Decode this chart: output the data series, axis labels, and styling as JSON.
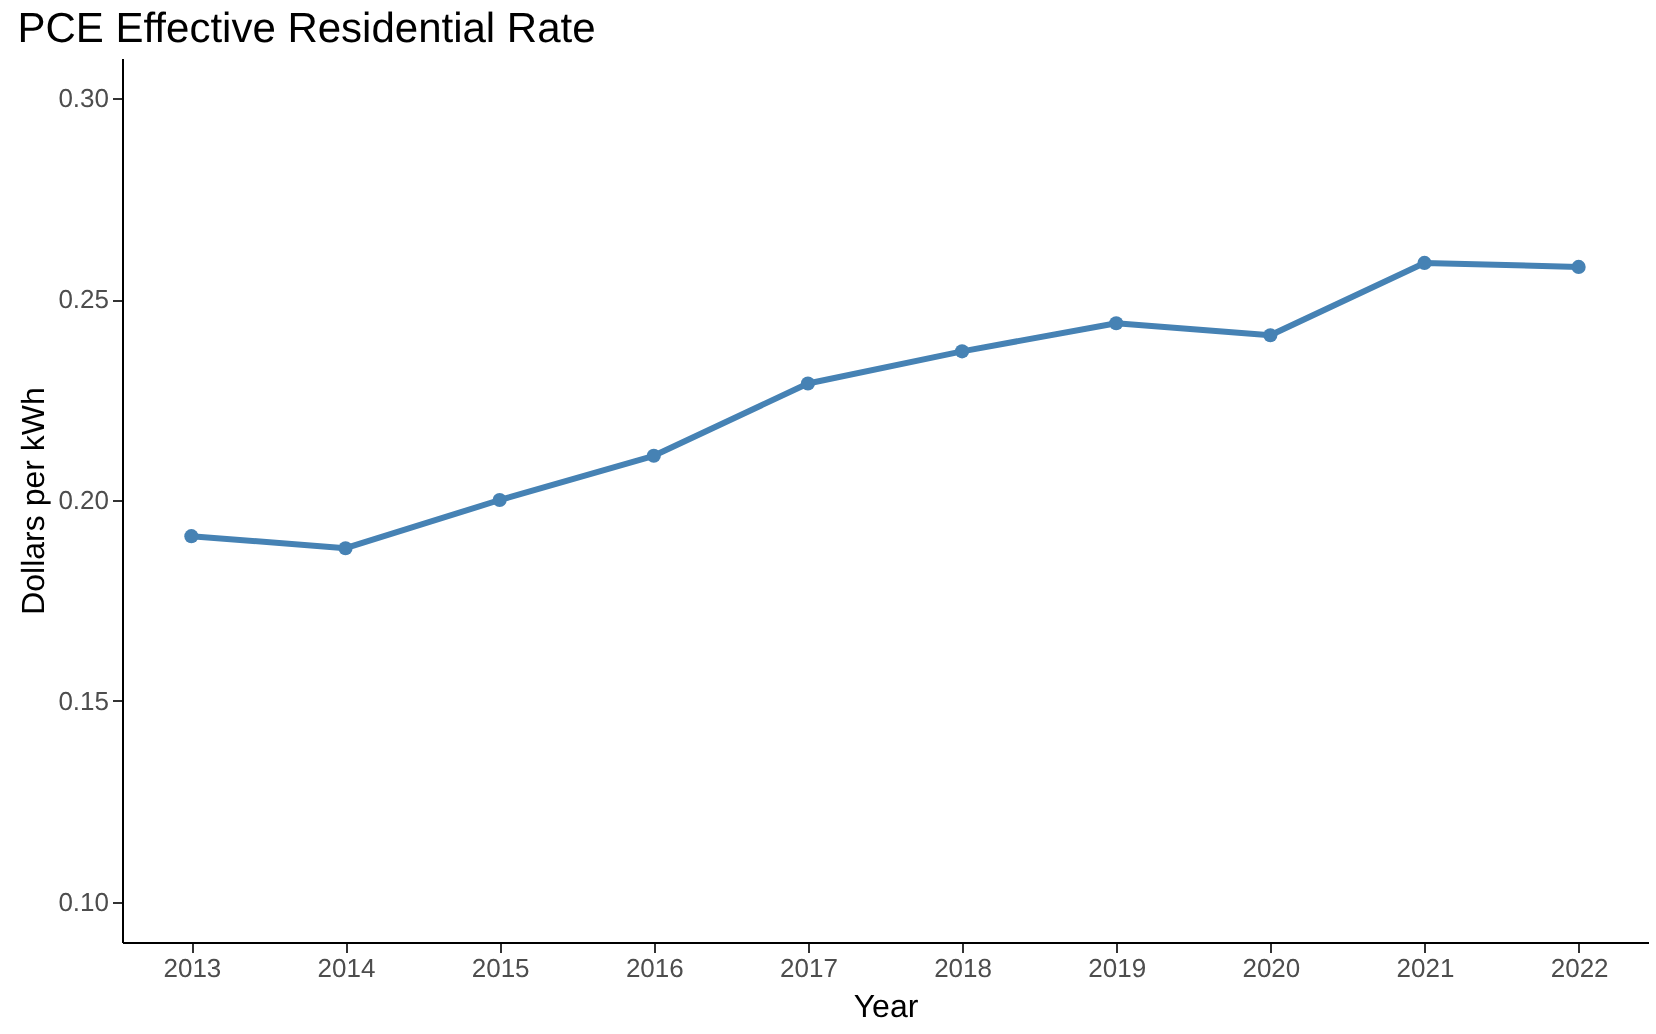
{
  "chart_data": {
    "type": "line",
    "title": "PCE Effective Residential Rate",
    "xlabel": "Year",
    "ylabel": "Dollars per kWh",
    "categories": [
      "2013",
      "2014",
      "2015",
      "2016",
      "2017",
      "2018",
      "2019",
      "2020",
      "2021",
      "2022"
    ],
    "series": [
      {
        "color": "#4682b4",
        "values": [
          0.191,
          0.188,
          0.2,
          0.211,
          0.229,
          0.237,
          0.244,
          0.241,
          0.259,
          0.258
        ]
      }
    ],
    "ylim": [
      0.09,
      0.31
    ],
    "yticks": [
      {
        "value": 0.1,
        "label": "0.10"
      },
      0.15,
      {
        "value": 0.2,
        "label": "0.20"
      },
      0.25,
      {
        "value": 0.3,
        "label": "0.30"
      }
    ],
    "grid": false,
    "legend": false,
    "marker": "circle",
    "line_style": "solid"
  }
}
